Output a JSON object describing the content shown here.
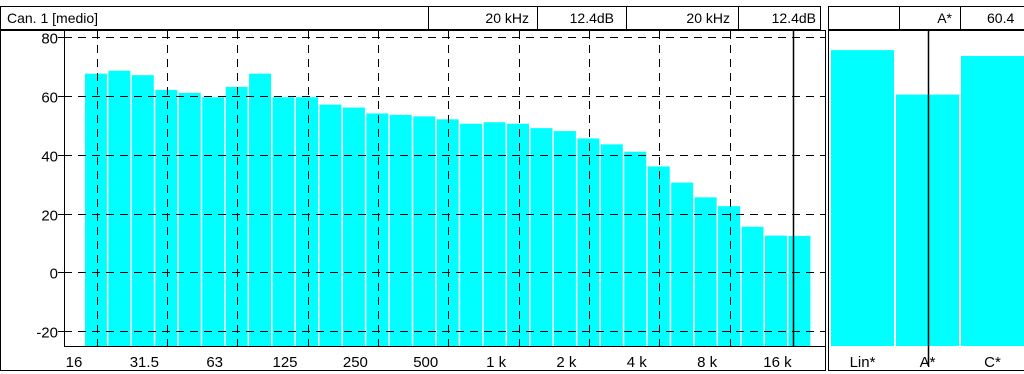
{
  "header": {
    "channel_label": "Can. 1 [medio]",
    "freq1": "20 kHz",
    "level1": "12.4dB",
    "freq2": "20 kHz",
    "level2": "12.4dB",
    "weight_label": "A*",
    "weight_value": "60.4"
  },
  "colors": {
    "bar": "#00FFFF",
    "grid": "#000000",
    "background": "#FFFFFF"
  },
  "chart_data": [
    {
      "type": "bar",
      "title": "",
      "xlabel": "",
      "ylabel": "",
      "ylim": [
        -25,
        82
      ],
      "yticks": [
        80,
        60,
        40,
        20,
        0,
        -20
      ],
      "grid": true,
      "x_tick_labels": [
        "16",
        "31.5",
        "63",
        "125",
        "250",
        "500",
        "1 k",
        "2 k",
        "4 k",
        "8 k",
        "16 k"
      ],
      "categories": [
        "16",
        "20",
        "25",
        "31.5",
        "40",
        "50",
        "63",
        "80",
        "100",
        "125",
        "160",
        "200",
        "250",
        "315",
        "400",
        "500",
        "630",
        "800",
        "1 k",
        "1.25 k",
        "1.6 k",
        "2 k",
        "2.5 k",
        "3.15 k",
        "4 k",
        "5 k",
        "6.3 k",
        "8 k",
        "10 k",
        "12.5 k",
        "16 k",
        "20 k"
      ],
      "values": [
        null,
        67.5,
        68.5,
        67,
        62,
        61,
        59.5,
        63,
        67.5,
        59.5,
        59.5,
        57,
        56,
        54,
        53.5,
        53,
        52,
        50.5,
        51,
        50.5,
        49,
        48,
        45.5,
        43.5,
        41,
        36,
        30.5,
        25.5,
        22.5,
        15.5,
        12.5,
        12.4
      ],
      "cursor_category": "20 k"
    },
    {
      "type": "bar",
      "title": "",
      "ylim": [
        -25,
        82
      ],
      "grid": false,
      "categories": [
        "Lin*",
        "A*",
        "C*"
      ],
      "values": [
        75.5,
        60.4,
        73.5
      ],
      "cursor_category": "A*"
    }
  ]
}
